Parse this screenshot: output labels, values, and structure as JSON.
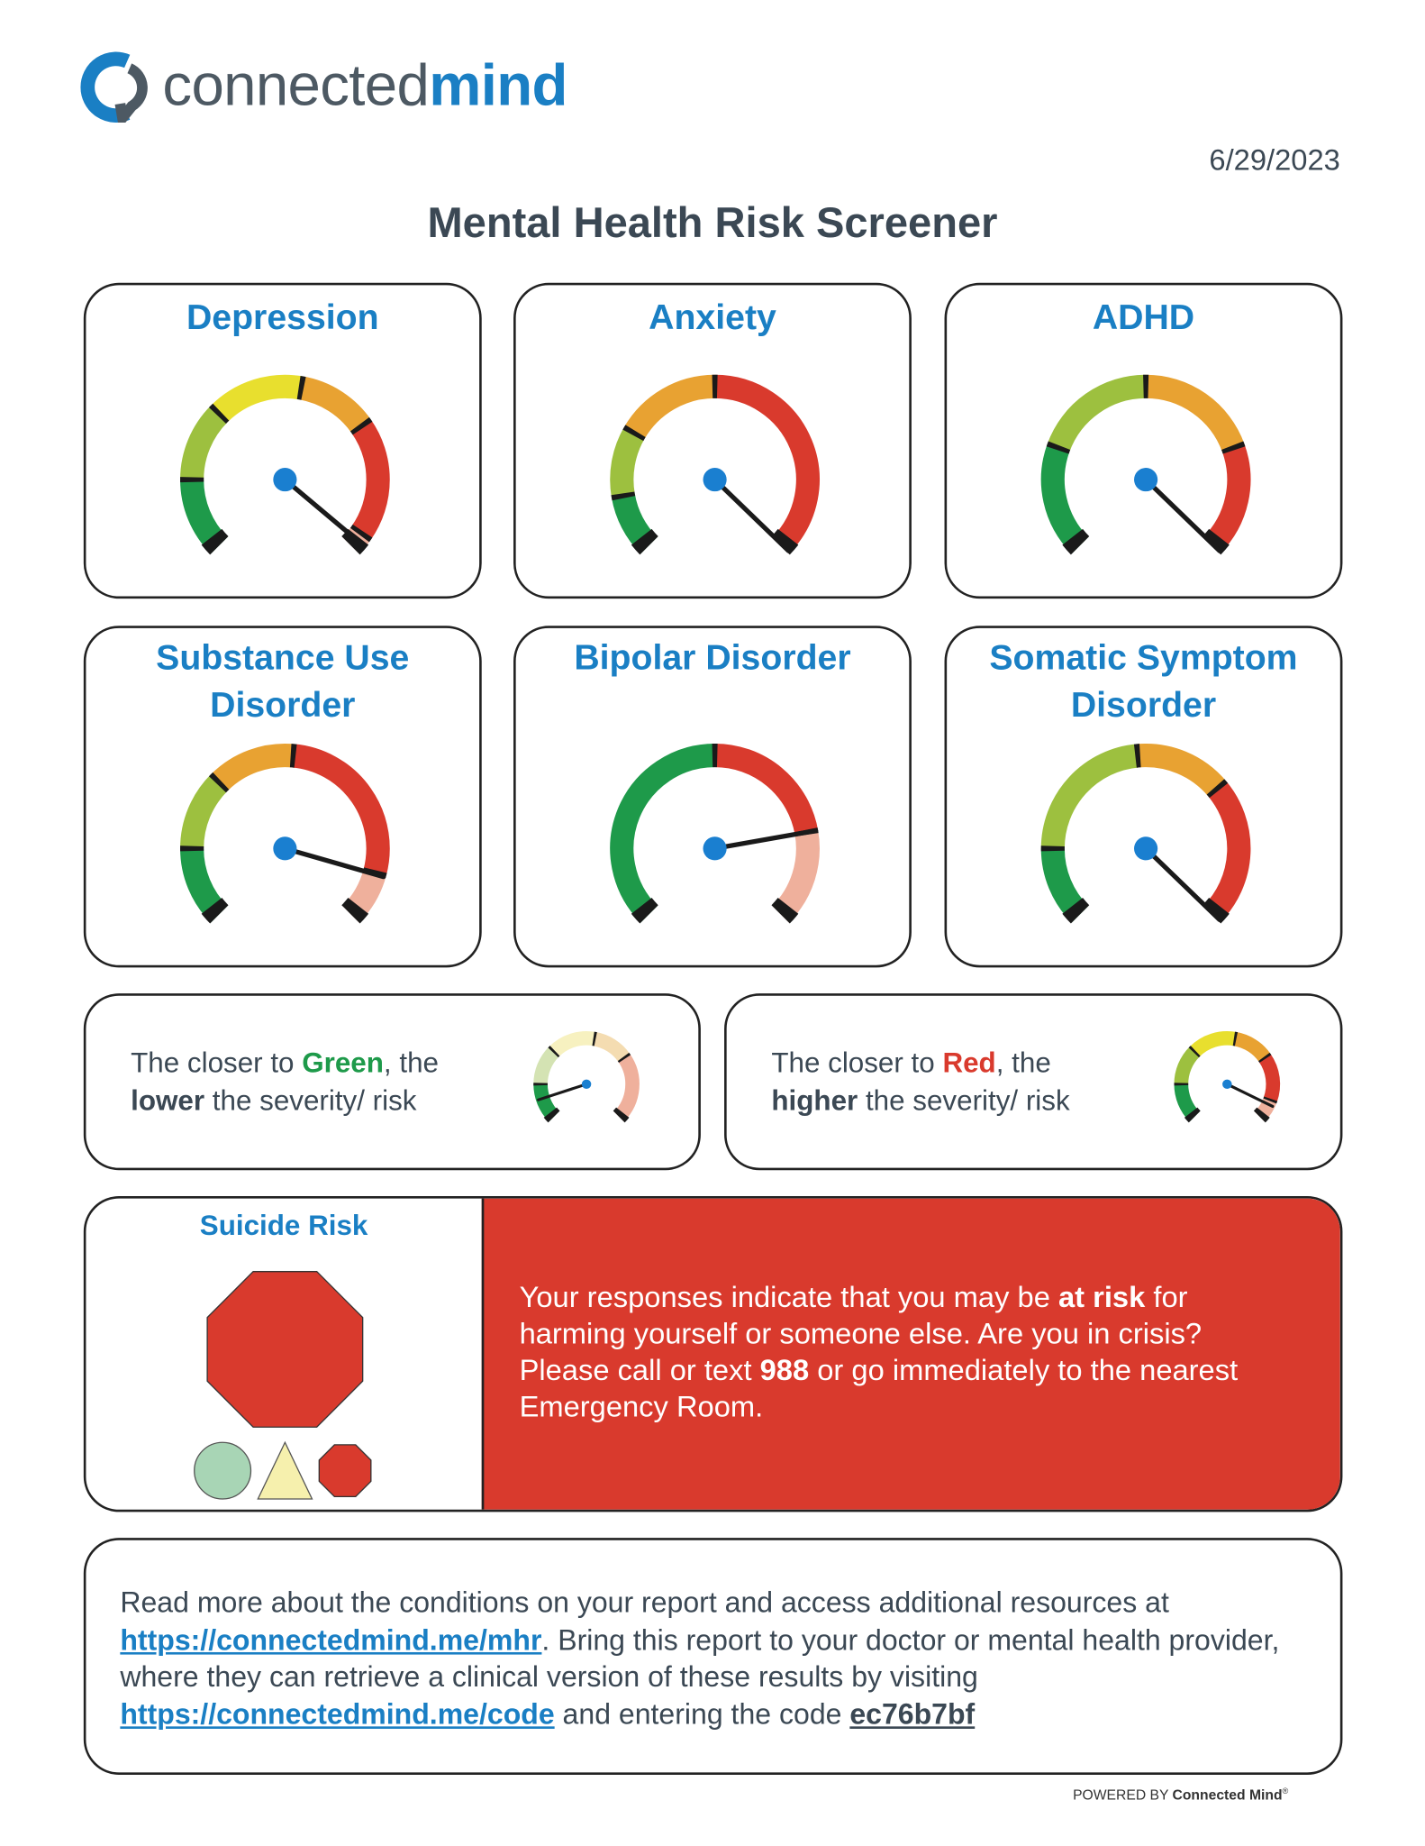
{
  "header": {
    "logo_light": "connected",
    "logo_bold": "mind",
    "date": "6/29/2023",
    "title": "Mental Health Risk Screener"
  },
  "gauges": [
    {
      "label": "Depression"
    },
    {
      "label": "Anxiety"
    },
    {
      "label": "ADHD"
    },
    {
      "label": "Substance Use Disorder"
    },
    {
      "label": "Bipolar Disorder"
    },
    {
      "label": "Somatic Symptom Disorder"
    }
  ],
  "legend": [
    {
      "text1": "The closer to ",
      "color_word": "Green",
      "text2": ", the ",
      "level_word": "lower",
      "text3": " the severity/ risk"
    },
    {
      "text1": "The closer to ",
      "color_word": "Red",
      "text2": ", the ",
      "level_word": "higher",
      "text3": " the severity/ risk"
    }
  ],
  "suicide": {
    "title": "Suicide Risk",
    "text1": "Your responses indicate that you may be ",
    "bold1": "at risk",
    "text2": " for harming yourself or someone else. Are you in crisis? Please call or text ",
    "bold2": "988",
    "text3": " or go immediately to the nearest Emergency Room."
  },
  "footer": {
    "text1": "Read more about the conditions on your report and access additional resources at ",
    "link1": "https://connectedmind.me/mhr",
    "text2": ". Bring this report to your doctor or mental health provider, where they can retrieve a clinical version of these results by visiting ",
    "link2": "https://connectedmind.me/code",
    "text3": " and entering the code ",
    "code": "ec76b7bf"
  },
  "powered": {
    "prefix": "POWERED BY ",
    "brand": "Connected Mind",
    "mark": "®"
  }
}
